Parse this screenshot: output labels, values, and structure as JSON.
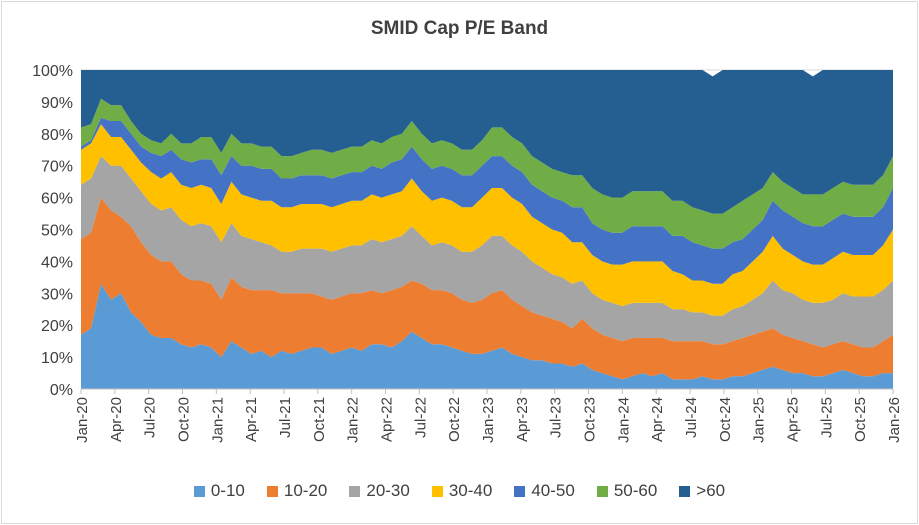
{
  "chart_data": {
    "type": "area",
    "stacked": true,
    "percent": true,
    "title": "SMID Cap P/E Band",
    "xlabel": "",
    "ylabel": "",
    "ylim": [
      0,
      100
    ],
    "yticks": [
      "0%",
      "10%",
      "20%",
      "30%",
      "40%",
      "50%",
      "60%",
      "70%",
      "80%",
      "90%",
      "100%"
    ],
    "x_tick_labels": [
      "Jan-20",
      "Apr-20",
      "Jul-20",
      "Oct-20",
      "Jan-21",
      "Apr-21",
      "Jul-21",
      "Oct-21",
      "Jan-22",
      "Apr-22",
      "Jul-22",
      "Oct-22",
      "Jan-23",
      "Apr-23",
      "Jul-23",
      "Oct-23",
      "Jan-24",
      "Apr-24",
      "Jul-24",
      "Oct-24",
      "Jan-25",
      "Apr-25",
      "Jul-25",
      "Oct-25",
      "Jan-26"
    ],
    "legend_position": "bottom",
    "grid": "horizontal",
    "series": [
      {
        "name": "0-10",
        "color": "#5b9bd5",
        "values": [
          17,
          19,
          33,
          28,
          30,
          24,
          21,
          17,
          16,
          16,
          14,
          13,
          14,
          13,
          10,
          15,
          13,
          11,
          12,
          10,
          12,
          11,
          12,
          13,
          13,
          11,
          12,
          13,
          12,
          14,
          14,
          13,
          15,
          18,
          16,
          14,
          14,
          13,
          12,
          11,
          11,
          12,
          13,
          11,
          10,
          9,
          9,
          8,
          8,
          7,
          8,
          6,
          5,
          4,
          3,
          4,
          5,
          4,
          5,
          3,
          3,
          3,
          4,
          3,
          3,
          4,
          4,
          5,
          6,
          7,
          6,
          5,
          5,
          4,
          4,
          5,
          6,
          5,
          4,
          4,
          5,
          5
        ]
      },
      {
        "name": "10-20",
        "color": "#ed7d31",
        "values": [
          30,
          30,
          27,
          28,
          24,
          27,
          25,
          25,
          24,
          24,
          22,
          21,
          20,
          20,
          18,
          20,
          19,
          20,
          19,
          21,
          18,
          19,
          18,
          17,
          16,
          17,
          17,
          17,
          18,
          17,
          16,
          18,
          17,
          16,
          17,
          17,
          17,
          17,
          16,
          16,
          17,
          18,
          18,
          17,
          16,
          15,
          14,
          14,
          13,
          12,
          14,
          13,
          12,
          12,
          12,
          12,
          11,
          12,
          11,
          12,
          12,
          12,
          11,
          11,
          11,
          11,
          12,
          12,
          12,
          12,
          11,
          11,
          10,
          10,
          9,
          9,
          9,
          9,
          9,
          9,
          10,
          12
        ]
      },
      {
        "name": "20-30",
        "color": "#a5a5a5",
        "values": [
          17,
          17,
          13,
          14,
          16,
          15,
          16,
          16,
          16,
          17,
          17,
          17,
          18,
          18,
          18,
          17,
          16,
          16,
          15,
          14,
          13,
          13,
          14,
          14,
          15,
          15,
          15,
          15,
          15,
          16,
          16,
          16,
          16,
          17,
          15,
          14,
          15,
          15,
          15,
          16,
          17,
          18,
          17,
          17,
          17,
          16,
          15,
          14,
          14,
          14,
          12,
          11,
          11,
          11,
          11,
          11,
          11,
          11,
          11,
          10,
          10,
          9,
          9,
          9,
          9,
          10,
          10,
          11,
          12,
          15,
          14,
          14,
          13,
          13,
          14,
          14,
          15,
          15,
          16,
          16,
          16,
          17
        ]
      },
      {
        "name": "30-40",
        "color": "#ffc000",
        "values": [
          11,
          11,
          10,
          9,
          9,
          9,
          9,
          10,
          10,
          11,
          11,
          12,
          12,
          12,
          12,
          13,
          13,
          13,
          13,
          14,
          14,
          14,
          14,
          14,
          14,
          14,
          14,
          14,
          14,
          14,
          14,
          14,
          14,
          15,
          14,
          14,
          14,
          14,
          14,
          14,
          15,
          15,
          15,
          15,
          15,
          14,
          14,
          14,
          14,
          13,
          12,
          12,
          12,
          12,
          13,
          13,
          13,
          13,
          13,
          12,
          11,
          10,
          10,
          10,
          10,
          11,
          11,
          12,
          13,
          14,
          13,
          12,
          12,
          12,
          12,
          13,
          13,
          13,
          13,
          13,
          14,
          16
        ]
      },
      {
        "name": "40-50",
        "color": "#4472c4",
        "values": [
          1,
          1,
          2,
          5,
          5,
          5,
          5,
          6,
          7,
          7,
          8,
          8,
          8,
          9,
          9,
          8,
          9,
          10,
          10,
          10,
          9,
          9,
          9,
          9,
          9,
          9,
          9,
          9,
          9,
          9,
          9,
          10,
          10,
          10,
          10,
          10,
          10,
          10,
          10,
          10,
          10,
          10,
          10,
          10,
          10,
          10,
          10,
          10,
          10,
          11,
          11,
          10,
          10,
          10,
          10,
          11,
          11,
          11,
          11,
          11,
          12,
          12,
          11,
          11,
          11,
          10,
          10,
          10,
          10,
          11,
          12,
          12,
          12,
          12,
          12,
          12,
          12,
          12,
          12,
          12,
          12,
          13
        ]
      },
      {
        "name": "50-60",
        "color": "#70ad47",
        "values": [
          6,
          5,
          6,
          5,
          5,
          4,
          4,
          4,
          4,
          5,
          5,
          6,
          7,
          7,
          7,
          7,
          7,
          7,
          7,
          7,
          7,
          7,
          7,
          8,
          8,
          8,
          8,
          8,
          8,
          8,
          8,
          8,
          8,
          8,
          8,
          8,
          8,
          8,
          8,
          8,
          8,
          9,
          9,
          9,
          9,
          9,
          9,
          9,
          9,
          10,
          10,
          11,
          11,
          11,
          11,
          11,
          11,
          11,
          11,
          11,
          11,
          11,
          11,
          11,
          11,
          11,
          12,
          11,
          10,
          9,
          9,
          9,
          9,
          10,
          10,
          10,
          10,
          10,
          10,
          10,
          10,
          10
        ]
      },
      {
        "name": ">60",
        "color": "#255e91",
        "values": [
          18,
          17,
          9,
          11,
          11,
          16,
          20,
          22,
          23,
          20,
          23,
          23,
          21,
          21,
          26,
          20,
          23,
          23,
          24,
          24,
          27,
          27,
          26,
          25,
          25,
          26,
          25,
          24,
          24,
          22,
          23,
          21,
          20,
          16,
          20,
          23,
          22,
          23,
          25,
          25,
          22,
          18,
          18,
          21,
          23,
          27,
          29,
          31,
          32,
          33,
          33,
          37,
          39,
          40,
          40,
          38,
          38,
          38,
          38,
          41,
          41,
          43,
          44,
          43,
          45,
          43,
          41,
          39,
          37,
          32,
          35,
          37,
          39,
          37,
          39,
          37,
          35,
          36,
          36,
          36,
          33,
          27
        ]
      }
    ]
  }
}
